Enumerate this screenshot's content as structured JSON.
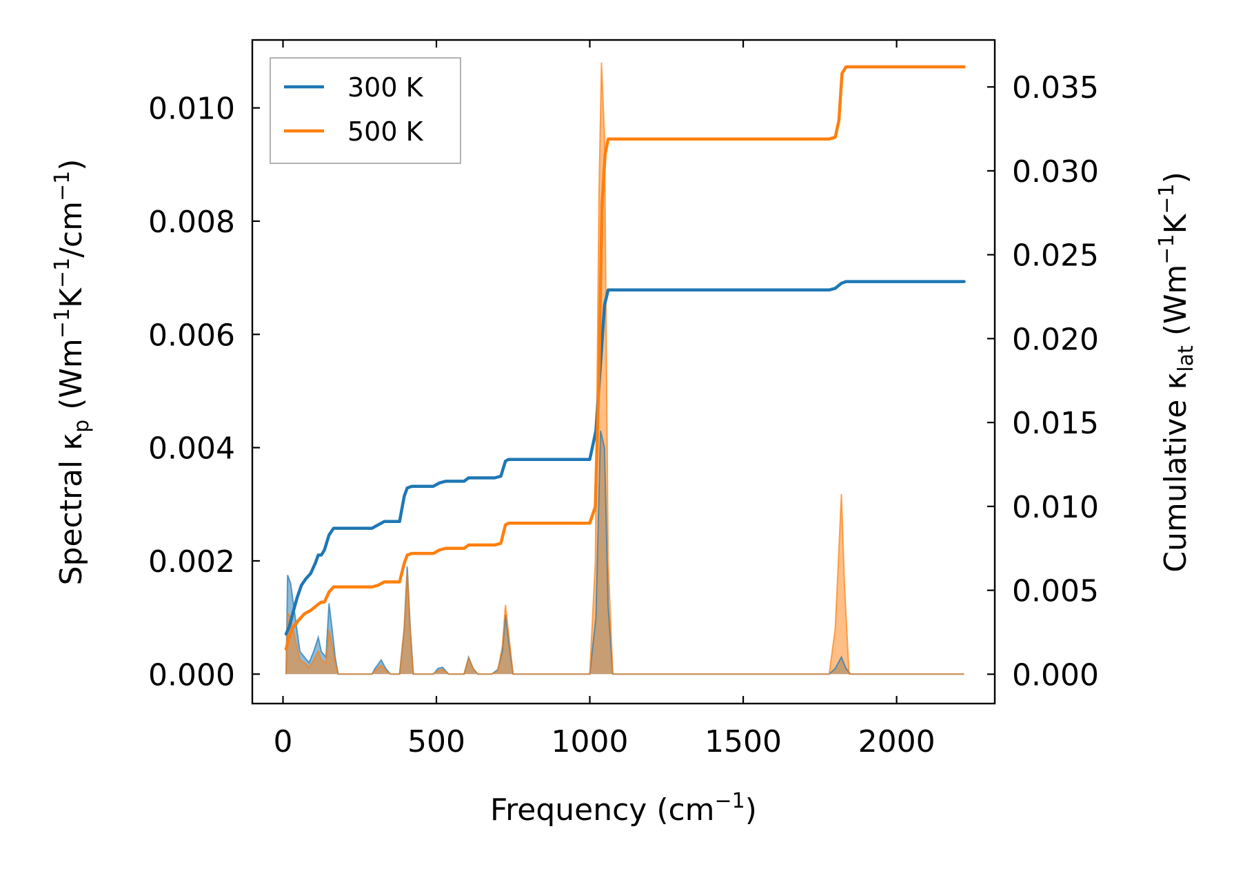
{
  "chart_data": {
    "type": "line",
    "title": "",
    "xlabel": "Frequency (cm",
    "xlabel_sup": "−1",
    "xlabel_end": ")",
    "ylabel_left": {
      "parts": [
        {
          "t": "Spectral κ"
        },
        {
          "t": "p",
          "sub": true
        },
        {
          "t": " (Wm"
        },
        {
          "t": "−1",
          "sup": true
        },
        {
          "t": "K"
        },
        {
          "t": "−1",
          "sup": true
        },
        {
          "t": "/cm"
        },
        {
          "t": "−1",
          "sup": true
        },
        {
          "t": ")"
        }
      ]
    },
    "ylabel_right": {
      "parts": [
        {
          "t": "Cumulative κ"
        },
        {
          "t": "lat",
          "sub": true
        },
        {
          "t": " (Wm"
        },
        {
          "t": "−1",
          "sup": true
        },
        {
          "t": "K"
        },
        {
          "t": "−1",
          "sup": true
        },
        {
          "t": ")"
        }
      ]
    },
    "xlim": [
      -100,
      2320
    ],
    "ylim_left": [
      -0.00052,
      0.0112
    ],
    "ylim_right": [
      -0.00175,
      0.0378
    ],
    "x_ticks": [
      0,
      500,
      1000,
      1500,
      2000
    ],
    "x_tick_labels": [
      "0",
      "500",
      "1000",
      "1500",
      "2000"
    ],
    "y_left_ticks": [
      0,
      0.002,
      0.004,
      0.006,
      0.008,
      0.01
    ],
    "y_left_tick_labels": [
      "0.000",
      "0.002",
      "0.004",
      "0.006",
      "0.008",
      "0.010"
    ],
    "y_right_ticks": [
      0,
      0.005,
      0.01,
      0.015,
      0.02,
      0.025,
      0.03,
      0.035
    ],
    "y_right_tick_labels": [
      "0.000",
      "0.005",
      "0.010",
      "0.015",
      "0.020",
      "0.025",
      "0.030",
      "0.035"
    ],
    "legend": {
      "location": "upper-left",
      "entries": [
        {
          "label": "300 K",
          "color": "#1f77b4"
        },
        {
          "label": "500 K",
          "color": "#ff7f0e"
        }
      ]
    },
    "colors": {
      "300K": "#1f77b4",
      "500K": "#ff7f0e",
      "overlap": "#c49a72"
    },
    "series": [
      {
        "name": "300 K",
        "kind": "spectral",
        "axis": "left",
        "color": "#1f77b4",
        "points": [
          [
            10,
            0
          ],
          [
            15,
            0.00175
          ],
          [
            25,
            0.0016
          ],
          [
            40,
            0.001
          ],
          [
            55,
            0.0004
          ],
          [
            70,
            0.0003
          ],
          [
            85,
            0.0002
          ],
          [
            100,
            0.0004
          ],
          [
            115,
            0.00065
          ],
          [
            125,
            0.0004
          ],
          [
            140,
            0.0003
          ],
          [
            150,
            0.00125
          ],
          [
            160,
            0.0008
          ],
          [
            170,
            0.0003
          ],
          [
            180,
            0
          ],
          [
            290,
            0
          ],
          [
            300,
            0.0001
          ],
          [
            320,
            0.00025
          ],
          [
            335,
            0.0001
          ],
          [
            350,
            0
          ],
          [
            380,
            0
          ],
          [
            395,
            0.0008
          ],
          [
            405,
            0.0019
          ],
          [
            415,
            0.0008
          ],
          [
            425,
            0
          ],
          [
            490,
            0
          ],
          [
            505,
            0.0001
          ],
          [
            520,
            0.00012
          ],
          [
            540,
            0
          ],
          [
            590,
            0
          ],
          [
            605,
            0.0003
          ],
          [
            620,
            0.0001
          ],
          [
            635,
            0
          ],
          [
            680,
            0
          ],
          [
            700,
            8e-05
          ],
          [
            715,
            0.0004
          ],
          [
            725,
            0.00105
          ],
          [
            740,
            0.0004
          ],
          [
            750,
            0
          ],
          [
            1000,
            0
          ],
          [
            1020,
            0.001
          ],
          [
            1035,
            0.0043
          ],
          [
            1048,
            0.004
          ],
          [
            1060,
            0.0012
          ],
          [
            1075,
            0
          ],
          [
            1780,
            0
          ],
          [
            1800,
            0.0001
          ],
          [
            1820,
            0.0003
          ],
          [
            1835,
            0.0001
          ],
          [
            1850,
            0
          ],
          [
            2220,
            0
          ]
        ]
      },
      {
        "name": "500 K",
        "kind": "spectral",
        "axis": "left",
        "color": "#ff7f0e",
        "points": [
          [
            10,
            0
          ],
          [
            15,
            0.00108
          ],
          [
            25,
            0.001
          ],
          [
            40,
            0.0006
          ],
          [
            55,
            0.00025
          ],
          [
            70,
            0.0002
          ],
          [
            85,
            0.00012
          ],
          [
            100,
            0.00025
          ],
          [
            115,
            0.0004
          ],
          [
            125,
            0.00025
          ],
          [
            140,
            0.0002
          ],
          [
            150,
            0.00078
          ],
          [
            160,
            0.0005
          ],
          [
            170,
            0.0002
          ],
          [
            180,
            0
          ],
          [
            290,
            0
          ],
          [
            300,
            6e-05
          ],
          [
            320,
            0.00016
          ],
          [
            335,
            6e-05
          ],
          [
            350,
            0
          ],
          [
            380,
            0
          ],
          [
            395,
            0.0008
          ],
          [
            405,
            0.0018
          ],
          [
            415,
            0.0007
          ],
          [
            425,
            0
          ],
          [
            490,
            0
          ],
          [
            505,
            6e-05
          ],
          [
            520,
            8e-05
          ],
          [
            540,
            0
          ],
          [
            590,
            0
          ],
          [
            605,
            0.00028
          ],
          [
            620,
            0.0001
          ],
          [
            635,
            0
          ],
          [
            680,
            0
          ],
          [
            700,
            5e-05
          ],
          [
            715,
            0.0005
          ],
          [
            725,
            0.00122
          ],
          [
            740,
            0.0005
          ],
          [
            750,
            0
          ],
          [
            1000,
            0
          ],
          [
            1018,
            0.002
          ],
          [
            1030,
            0.0085
          ],
          [
            1038,
            0.0108
          ],
          [
            1048,
            0.0095
          ],
          [
            1060,
            0.002
          ],
          [
            1075,
            0
          ],
          [
            1780,
            0
          ],
          [
            1800,
            0.0008
          ],
          [
            1812,
            0.0022
          ],
          [
            1820,
            0.00318
          ],
          [
            1830,
            0.0016
          ],
          [
            1845,
            0
          ],
          [
            2220,
            0
          ]
        ]
      },
      {
        "name": "300 K",
        "kind": "cumulative",
        "axis": "right",
        "color": "#1f77b4",
        "points": [
          [
            10,
            0.0024
          ],
          [
            20,
            0.0028
          ],
          [
            30,
            0.0035
          ],
          [
            45,
            0.0045
          ],
          [
            60,
            0.0053
          ],
          [
            75,
            0.0057
          ],
          [
            90,
            0.006
          ],
          [
            105,
            0.0066
          ],
          [
            115,
            0.0071
          ],
          [
            125,
            0.0071
          ],
          [
            135,
            0.0074
          ],
          [
            150,
            0.0083
          ],
          [
            165,
            0.0087
          ],
          [
            180,
            0.0087
          ],
          [
            290,
            0.0087
          ],
          [
            310,
            0.0089
          ],
          [
            330,
            0.0091
          ],
          [
            380,
            0.0091
          ],
          [
            395,
            0.0106
          ],
          [
            405,
            0.0111
          ],
          [
            420,
            0.0112
          ],
          [
            490,
            0.0112
          ],
          [
            510,
            0.0114
          ],
          [
            530,
            0.0115
          ],
          [
            590,
            0.0115
          ],
          [
            605,
            0.0117
          ],
          [
            620,
            0.0117
          ],
          [
            690,
            0.0117
          ],
          [
            710,
            0.0118
          ],
          [
            725,
            0.0127
          ],
          [
            735,
            0.0128
          ],
          [
            1000,
            0.0128
          ],
          [
            1020,
            0.0145
          ],
          [
            1035,
            0.0185
          ],
          [
            1048,
            0.022
          ],
          [
            1060,
            0.0229
          ],
          [
            1075,
            0.0229
          ],
          [
            1780,
            0.0229
          ],
          [
            1800,
            0.023
          ],
          [
            1820,
            0.0233
          ],
          [
            1835,
            0.0234
          ],
          [
            2220,
            0.0234
          ]
        ]
      },
      {
        "name": "500 K",
        "kind": "cumulative",
        "axis": "right",
        "color": "#ff7f0e",
        "points": [
          [
            10,
            0.0015
          ],
          [
            20,
            0.0022
          ],
          [
            30,
            0.0027
          ],
          [
            50,
            0.0032
          ],
          [
            70,
            0.0036
          ],
          [
            90,
            0.0038
          ],
          [
            110,
            0.0041
          ],
          [
            125,
            0.0043
          ],
          [
            135,
            0.0043
          ],
          [
            150,
            0.0049
          ],
          [
            165,
            0.0052
          ],
          [
            180,
            0.0052
          ],
          [
            290,
            0.0052
          ],
          [
            310,
            0.0053
          ],
          [
            330,
            0.0055
          ],
          [
            380,
            0.0055
          ],
          [
            395,
            0.0066
          ],
          [
            405,
            0.0071
          ],
          [
            420,
            0.0072
          ],
          [
            490,
            0.0072
          ],
          [
            510,
            0.0074
          ],
          [
            530,
            0.0075
          ],
          [
            590,
            0.0075
          ],
          [
            605,
            0.0077
          ],
          [
            620,
            0.0077
          ],
          [
            690,
            0.0077
          ],
          [
            710,
            0.0078
          ],
          [
            725,
            0.0089
          ],
          [
            735,
            0.009
          ],
          [
            1000,
            0.009
          ],
          [
            1018,
            0.01
          ],
          [
            1030,
            0.018
          ],
          [
            1040,
            0.028
          ],
          [
            1050,
            0.031
          ],
          [
            1060,
            0.0319
          ],
          [
            1075,
            0.0319
          ],
          [
            1780,
            0.0319
          ],
          [
            1800,
            0.032
          ],
          [
            1812,
            0.033
          ],
          [
            1822,
            0.0358
          ],
          [
            1835,
            0.0362
          ],
          [
            2220,
            0.0362
          ]
        ]
      }
    ]
  }
}
